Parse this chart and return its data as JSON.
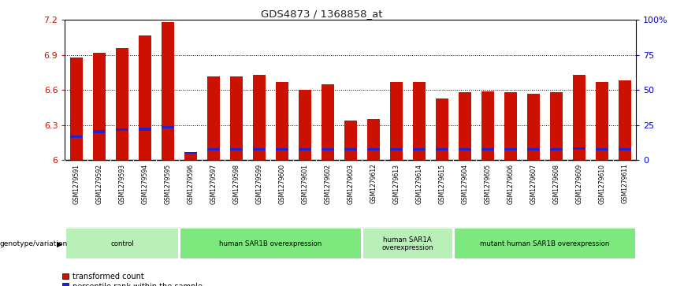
{
  "title": "GDS4873 / 1368858_at",
  "samples": [
    "GSM1279591",
    "GSM1279592",
    "GSM1279593",
    "GSM1279594",
    "GSM1279595",
    "GSM1279596",
    "GSM1279597",
    "GSM1279598",
    "GSM1279599",
    "GSM1279600",
    "GSM1279601",
    "GSM1279602",
    "GSM1279603",
    "GSM1279612",
    "GSM1279613",
    "GSM1279614",
    "GSM1279615",
    "GSM1279604",
    "GSM1279605",
    "GSM1279606",
    "GSM1279607",
    "GSM1279608",
    "GSM1279609",
    "GSM1279610",
    "GSM1279611"
  ],
  "red_values": [
    6.88,
    6.92,
    6.96,
    7.07,
    7.18,
    6.06,
    6.72,
    6.72,
    6.73,
    6.67,
    6.6,
    6.65,
    6.34,
    6.35,
    6.67,
    6.67,
    6.53,
    6.58,
    6.59,
    6.58,
    6.57,
    6.58,
    6.73,
    6.67,
    6.68
  ],
  "blue_top": [
    6.21,
    6.26,
    6.27,
    6.28,
    6.29,
    6.07,
    6.1,
    6.1,
    6.1,
    6.1,
    6.1,
    6.1,
    6.1,
    6.1,
    6.1,
    6.1,
    6.1,
    6.1,
    6.1,
    6.1,
    6.1,
    6.1,
    6.11,
    6.1,
    6.1
  ],
  "blue_bottom": [
    6.19,
    6.23,
    6.25,
    6.25,
    6.27,
    6.055,
    6.08,
    6.08,
    6.08,
    6.08,
    6.08,
    6.08,
    6.08,
    6.08,
    6.08,
    6.08,
    6.08,
    6.08,
    6.08,
    6.08,
    6.08,
    6.08,
    6.09,
    6.08,
    6.08
  ],
  "ymin": 6.0,
  "ymax": 7.2,
  "yticks": [
    6.0,
    6.3,
    6.6,
    6.9,
    7.2
  ],
  "ytick_labels": [
    "6",
    "6.3",
    "6.6",
    "6.9",
    "7.2"
  ],
  "right_yticks": [
    0,
    25,
    50,
    75,
    100
  ],
  "right_ytick_labels": [
    "0",
    "25",
    "50",
    "75",
    "100%"
  ],
  "groups": [
    {
      "label": "control",
      "start": 0,
      "end": 4
    },
    {
      "label": "human SAR1B overexpression",
      "start": 5,
      "end": 12
    },
    {
      "label": "human SAR1A\noverexpression",
      "start": 13,
      "end": 16
    },
    {
      "label": "mutant human SAR1B overexpression",
      "start": 17,
      "end": 24
    }
  ],
  "group_colors": [
    "#b8f0b8",
    "#7de87d",
    "#b8f0b8",
    "#7de87d"
  ],
  "bar_color_red": "#cc1100",
  "bar_color_blue": "#2222cc",
  "bar_width": 0.55,
  "legend_red": "transformed count",
  "legend_blue": "percentile rank within the sample",
  "left_axis_color": "#cc1100",
  "right_axis_color": "#0000cc",
  "xtick_bg_color": "#c8c8c8"
}
